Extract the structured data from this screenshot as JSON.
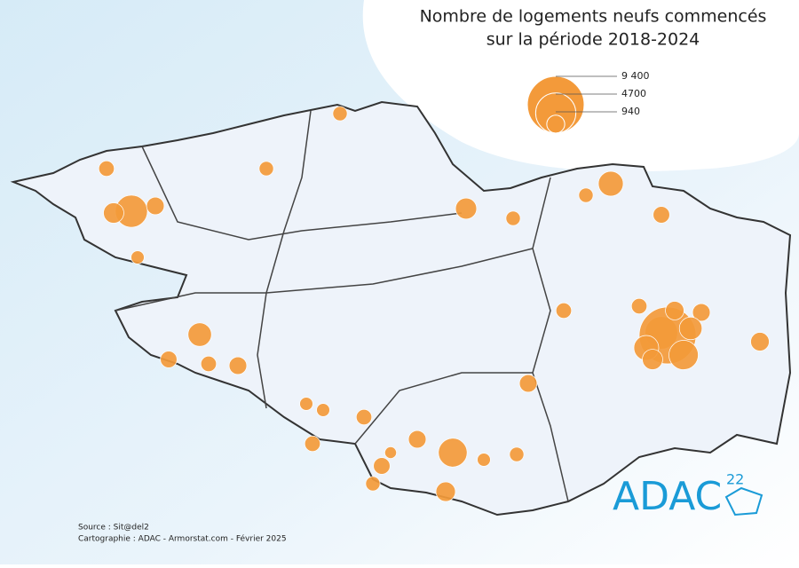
{
  "title": [
    "Nombre de logements neufs commencés",
    "sur la période 2018-2024"
  ],
  "legend": {
    "sizes": [
      {
        "value": 9400,
        "label": "9 400"
      },
      4700,
      940
    ]
  },
  "bubble_values": [
    3000,
    1200,
    900,
    700,
    600,
    500,
    1600,
    800,
    700,
    900,
    600,
    500,
    2400,
    900,
    1100,
    800,
    700,
    1800,
    600,
    3100,
    900,
    700,
    1000,
    9400,
    2500,
    1800,
    1500,
    1200,
    1000,
    900,
    1300,
    800,
    600,
    700,
    500,
    600,
    400,
    700,
    500,
    600
  ],
  "source": "Source : Sit@del2",
  "credits": "Cartographie : ADAC - Armorstat.com - Février 2025",
  "logo": {
    "name": "ADAC",
    "number": "22"
  }
}
